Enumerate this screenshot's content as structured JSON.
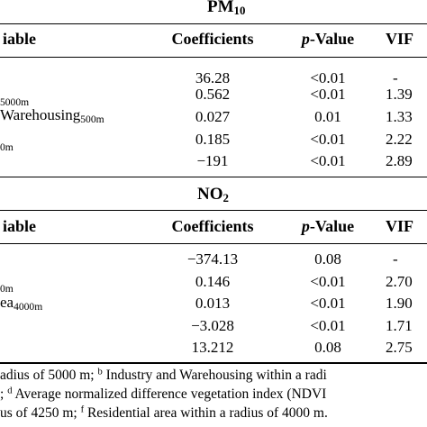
{
  "pm10": {
    "title_main": "PM",
    "title_sub": "10",
    "header": {
      "variable": "iable",
      "coefficients": "Coefficients",
      "pvalue_italic": "p",
      "pvalue_rest": "-Value",
      "vif": "VIF"
    },
    "rows": [
      {
        "var_main": "",
        "var_sub": "",
        "coef": "36.28",
        "p": "<0.01",
        "vif": "-"
      },
      {
        "var_main": "",
        "var_sub": "5000m",
        "coef": "0.562",
        "p": "<0.01",
        "vif": "1.39"
      },
      {
        "var_main": "Warehousing",
        "var_sub": "500m",
        "coef": "0.027",
        "p": "0.01",
        "vif": "1.33"
      },
      {
        "var_main": "",
        "var_sub": "0m",
        "coef": "0.185",
        "p": "<0.01",
        "vif": "2.22"
      },
      {
        "var_main": "",
        "var_sub": "",
        "coef": "−191",
        "p": "<0.01",
        "vif": "2.89"
      }
    ]
  },
  "no2": {
    "title_main": "NO",
    "title_sub": "2",
    "header": {
      "variable": "iable",
      "coefficients": "Coefficients",
      "pvalue_italic": "p",
      "pvalue_rest": "-Value",
      "vif": "VIF"
    },
    "rows": [
      {
        "var_main": "",
        "var_sub": "",
        "coef": "−374.13",
        "p": "0.08",
        "vif": "-"
      },
      {
        "var_main": "",
        "var_sub": "0m",
        "coef": "0.146",
        "p": "<0.01",
        "vif": "2.70"
      },
      {
        "var_main": "ea",
        "var_sub": "4000m",
        "coef": "0.013",
        "p": "<0.01",
        "vif": "1.90"
      },
      {
        "var_main": "",
        "var_sub": "",
        "coef": "−3.028",
        "p": "<0.01",
        "vif": "1.71"
      },
      {
        "var_main": "",
        "var_sub": "",
        "coef": "13.212",
        "p": "0.08",
        "vif": "2.75"
      }
    ]
  },
  "footnotes": {
    "line1_a": "adius of 5000 m; ",
    "line1_sup": "b",
    "line1_b": " Industry and Warehousing within a radi",
    "line2_a": "; ",
    "line2_sup": "d",
    "line2_b": " Average normalized difference vegetation index (NDVI",
    "line3_a": "us of 4250 m; ",
    "line3_sup": "f",
    "line3_b": " Residential area within a radius of 4000 m."
  }
}
